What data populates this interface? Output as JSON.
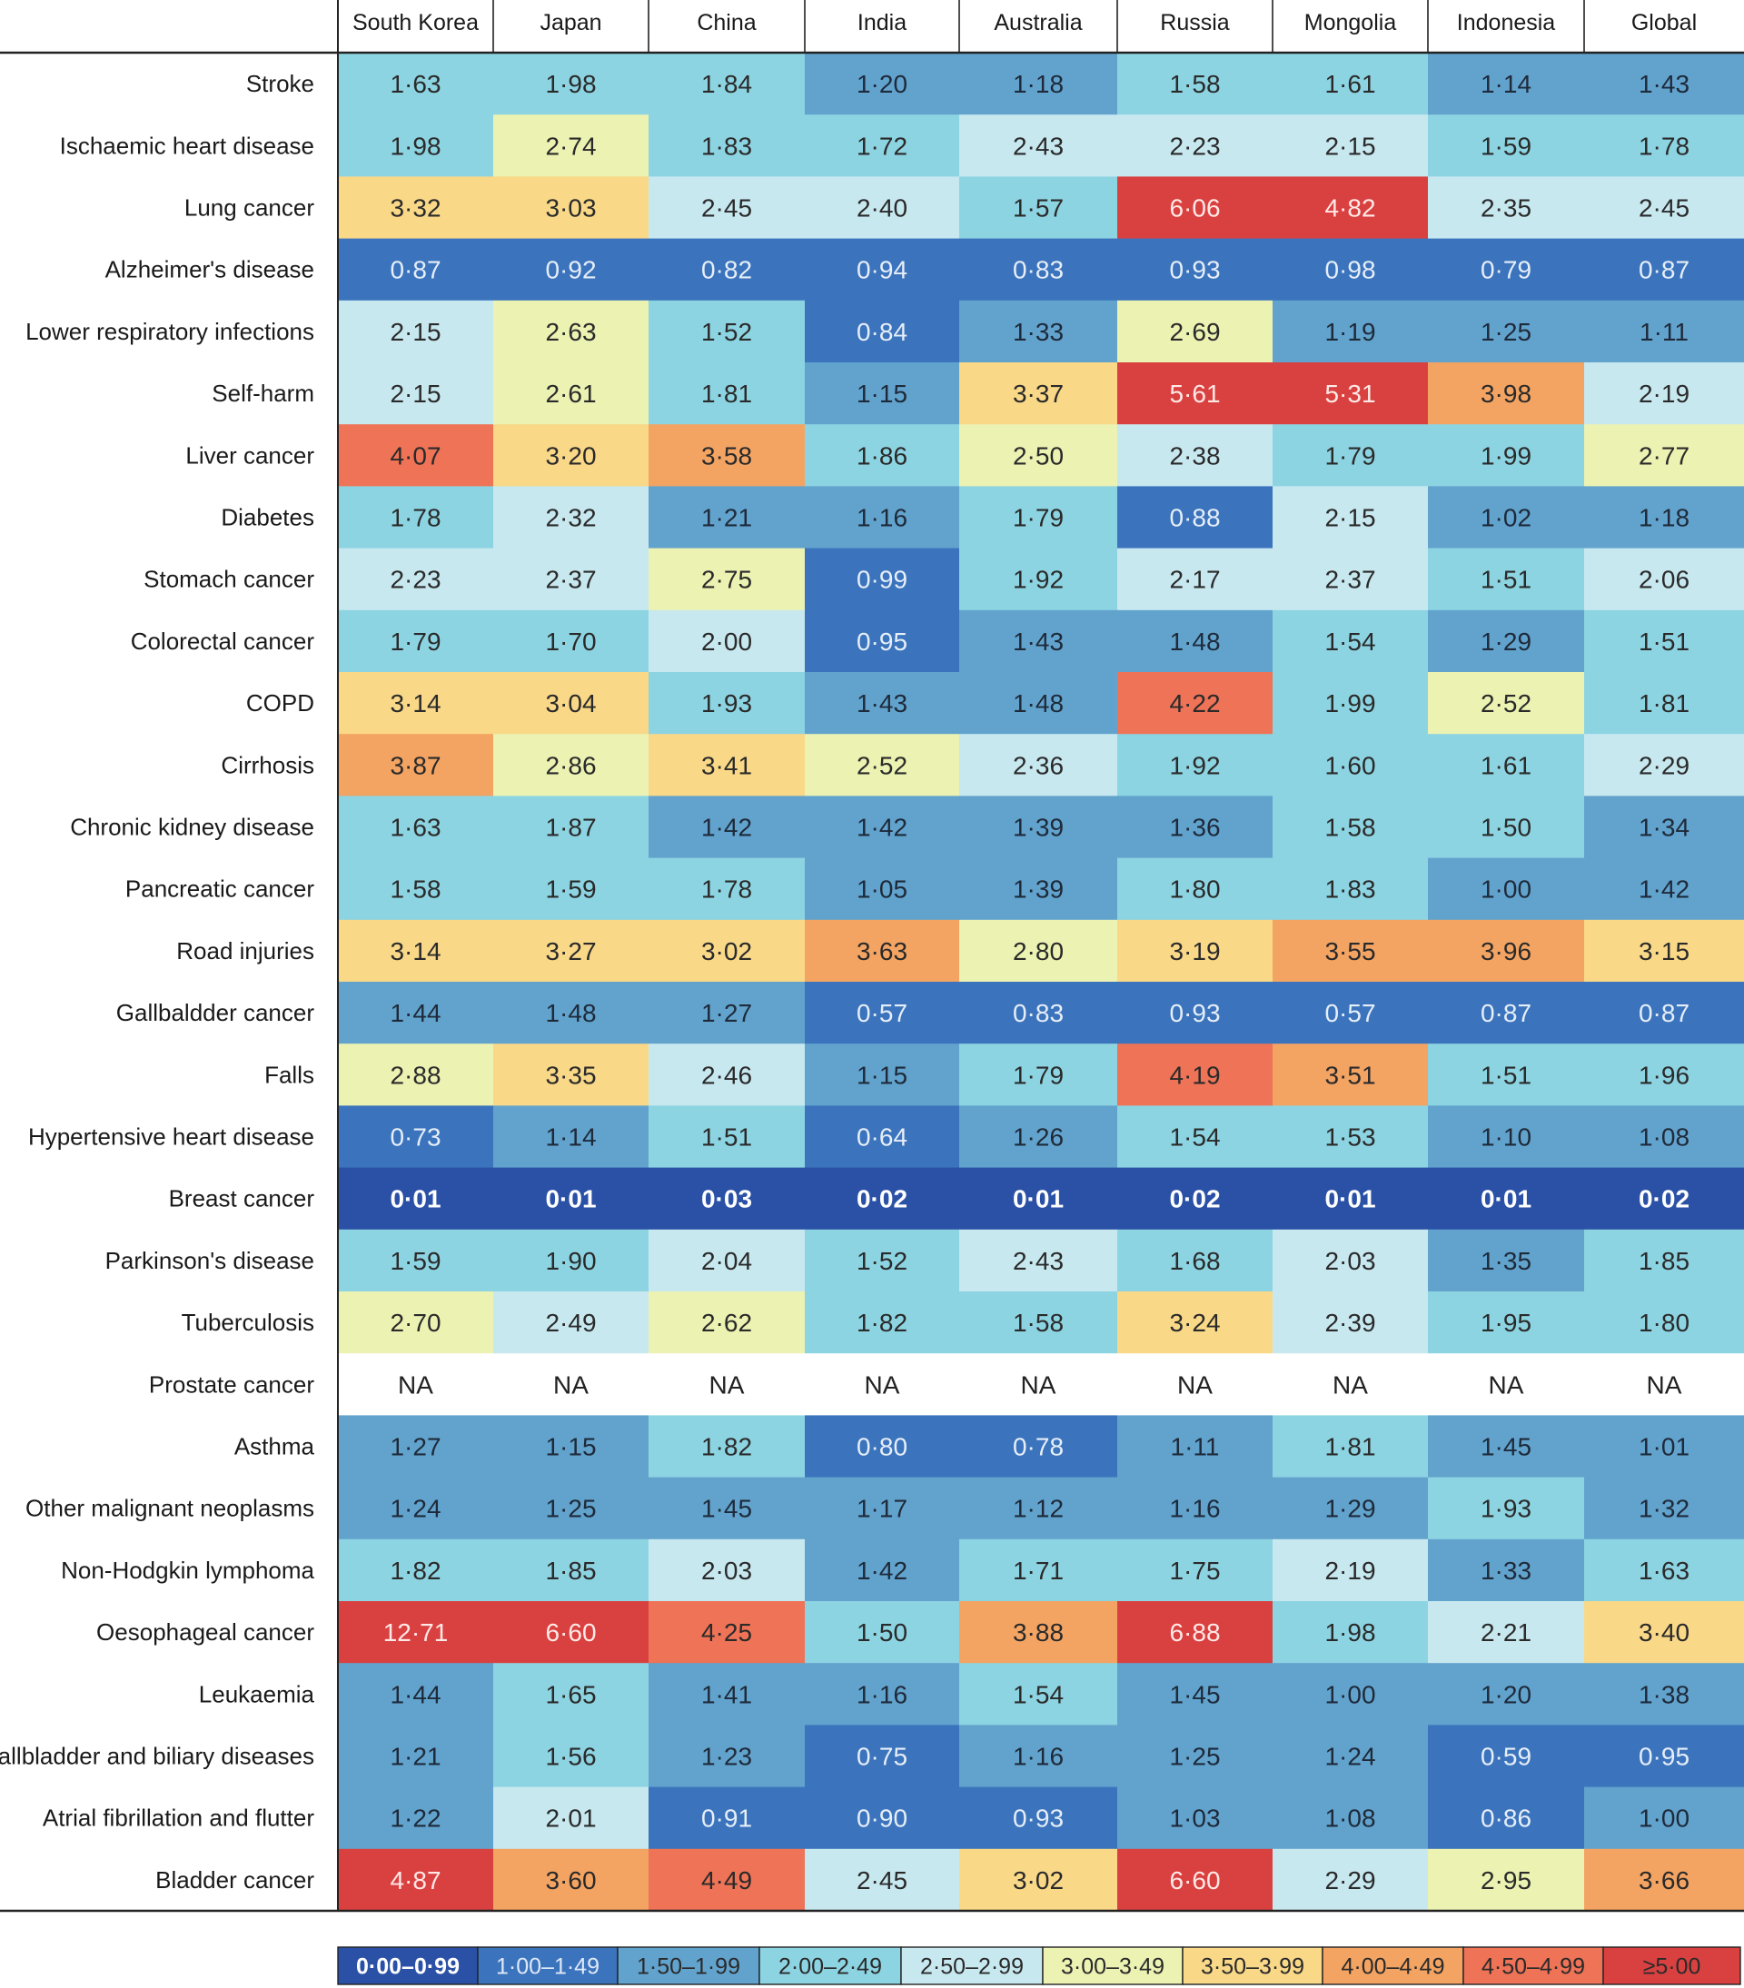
{
  "chart_data": {
    "type": "heatmap",
    "columns": [
      "South Korea",
      "Japan",
      "China",
      "India",
      "Australia",
      "Russia",
      "Mongolia",
      "Indonesia",
      "Global"
    ],
    "rows": [
      {
        "label": "Stroke",
        "values": [
          "1·63",
          "1·98",
          "1·84",
          "1·20",
          "1·18",
          "1·58",
          "1·61",
          "1·14",
          "1·43"
        ]
      },
      {
        "label": "Ischaemic heart disease",
        "values": [
          "1·98",
          "2·74",
          "1·83",
          "1·72",
          "2·43",
          "2·23",
          "2·15",
          "1·59",
          "1·78"
        ]
      },
      {
        "label": "Lung cancer",
        "values": [
          "3·32",
          "3·03",
          "2·45",
          "2·40",
          "1·57",
          "6·06",
          "4·82",
          "2·35",
          "2·45"
        ]
      },
      {
        "label": "Alzheimer's disease",
        "values": [
          "0·87",
          "0·92",
          "0·82",
          "0·94",
          "0·83",
          "0·93",
          "0·98",
          "0·79",
          "0·87"
        ]
      },
      {
        "label": "Lower respiratory infections",
        "values": [
          "2·15",
          "2·63",
          "1·52",
          "0·84",
          "1·33",
          "2·69",
          "1·19",
          "1·25",
          "1·11"
        ]
      },
      {
        "label": "Self-harm",
        "values": [
          "2·15",
          "2·61",
          "1·81",
          "1·15",
          "3·37",
          "5·61",
          "5·31",
          "3·98",
          "2·19"
        ]
      },
      {
        "label": "Liver cancer",
        "values": [
          "4·07",
          "3·20",
          "3·58",
          "1·86",
          "2·50",
          "2·38",
          "1·79",
          "1·99",
          "2·77"
        ]
      },
      {
        "label": "Diabetes",
        "values": [
          "1·78",
          "2·32",
          "1·21",
          "1·16",
          "1·79",
          "0·88",
          "2·15",
          "1·02",
          "1·18"
        ]
      },
      {
        "label": "Stomach cancer",
        "values": [
          "2·23",
          "2·37",
          "2·75",
          "0·99",
          "1·92",
          "2·17",
          "2·37",
          "1·51",
          "2·06"
        ]
      },
      {
        "label": "Colorectal cancer",
        "values": [
          "1·79",
          "1·70",
          "2·00",
          "0·95",
          "1·43",
          "1·48",
          "1·54",
          "1·29",
          "1·51"
        ]
      },
      {
        "label": "COPD",
        "values": [
          "3·14",
          "3·04",
          "1·93",
          "1·43",
          "1·48",
          "4·22",
          "1·99",
          "2·52",
          "1·81"
        ]
      },
      {
        "label": "Cirrhosis",
        "values": [
          "3·87",
          "2·86",
          "3·41",
          "2·52",
          "2·36",
          "1·92",
          "1·60",
          "1·61",
          "2·29"
        ]
      },
      {
        "label": "Chronic kidney disease",
        "values": [
          "1·63",
          "1·87",
          "1·42",
          "1·42",
          "1·39",
          "1·36",
          "1·58",
          "1·50",
          "1·34"
        ]
      },
      {
        "label": "Pancreatic cancer",
        "values": [
          "1·58",
          "1·59",
          "1·78",
          "1·05",
          "1·39",
          "1·80",
          "1·83",
          "1·00",
          "1·42"
        ]
      },
      {
        "label": "Road injuries",
        "values": [
          "3·14",
          "3·27",
          "3·02",
          "3·63",
          "2·80",
          "3·19",
          "3·55",
          "3·96",
          "3·15"
        ]
      },
      {
        "label": "Gallbaldder cancer",
        "values": [
          "1·44",
          "1·48",
          "1·27",
          "0·57",
          "0·83",
          "0·93",
          "0·57",
          "0·87",
          "0·87"
        ]
      },
      {
        "label": "Falls",
        "values": [
          "2·88",
          "3·35",
          "2·46",
          "1·15",
          "1·79",
          "4·19",
          "3·51",
          "1·51",
          "1·96"
        ]
      },
      {
        "label": "Hypertensive heart disease",
        "values": [
          "0·73",
          "1·14",
          "1·51",
          "0·64",
          "1·26",
          "1·54",
          "1·53",
          "1·10",
          "1·08"
        ]
      },
      {
        "label": "Breast cancer",
        "values": [
          "0·01",
          "0·01",
          "0·03",
          "0·02",
          "0·01",
          "0·02",
          "0·01",
          "0·01",
          "0·02"
        ]
      },
      {
        "label": "Parkinson's disease",
        "values": [
          "1·59",
          "1·90",
          "2·04",
          "1·52",
          "2·43",
          "1·68",
          "2·03",
          "1·35",
          "1·85"
        ]
      },
      {
        "label": "Tuberculosis",
        "values": [
          "2·70",
          "2·49",
          "2·62",
          "1·82",
          "1·58",
          "3·24",
          "2·39",
          "1·95",
          "1·80"
        ]
      },
      {
        "label": "Prostate cancer",
        "values": [
          "NA",
          "NA",
          "NA",
          "NA",
          "NA",
          "NA",
          "NA",
          "NA",
          "NA"
        ]
      },
      {
        "label": "Asthma",
        "values": [
          "1·27",
          "1·15",
          "1·82",
          "0·80",
          "0·78",
          "1·11",
          "1·81",
          "1·45",
          "1·01"
        ]
      },
      {
        "label": "Other malignant neoplasms",
        "values": [
          "1·24",
          "1·25",
          "1·45",
          "1·17",
          "1·12",
          "1·16",
          "1·29",
          "1·93",
          "1·32"
        ]
      },
      {
        "label": "Non-Hodgkin lymphoma",
        "values": [
          "1·82",
          "1·85",
          "2·03",
          "1·42",
          "1·71",
          "1·75",
          "2·19",
          "1·33",
          "1·63"
        ]
      },
      {
        "label": "Oesophageal cancer",
        "values": [
          "12·71",
          "6·60",
          "4·25",
          "1·50",
          "3·88",
          "6·88",
          "1·98",
          "2·21",
          "3·40"
        ]
      },
      {
        "label": "Leukaemia",
        "values": [
          "1·44",
          "1·65",
          "1·41",
          "1·16",
          "1·54",
          "1·45",
          "1·00",
          "1·20",
          "1·38"
        ]
      },
      {
        "label": "Gallbladder and biliary diseases",
        "values": [
          "1·21",
          "1·56",
          "1·23",
          "0·75",
          "1·16",
          "1·25",
          "1·24",
          "0·59",
          "0·95"
        ]
      },
      {
        "label": "Atrial fibrillation and flutter",
        "values": [
          "1·22",
          "2·01",
          "0·91",
          "0·90",
          "0·93",
          "1·03",
          "1·08",
          "0·86",
          "1·00"
        ]
      },
      {
        "label": "Bladder cancer",
        "values": [
          "4·87",
          "3·60",
          "4·49",
          "2·45",
          "3·02",
          "6·60",
          "2·29",
          "2·95",
          "3·66"
        ]
      }
    ],
    "legend": [
      {
        "label": "0·00–0·99",
        "color": "#2b51a6"
      },
      {
        "label": "1·00–1·49",
        "color": "#3b74bd"
      },
      {
        "label": "1·50–1·99",
        "color": "#62a3cd"
      },
      {
        "label": "2·00–2·49",
        "color": "#8dd4e2"
      },
      {
        "label": "2·50–2·99",
        "color": "#c8e8f0"
      },
      {
        "label": "3·00–3·49",
        "color": "#ecf2b2"
      },
      {
        "label": "3·50–3·99",
        "color": "#f9d888"
      },
      {
        "label": "4·00–4·49",
        "color": "#f3a463"
      },
      {
        "label": "4·50–4·99",
        "color": "#ee7357"
      },
      {
        "label": "≥5·00",
        "color": "#d94141"
      }
    ],
    "na_color": "#ffffff"
  }
}
